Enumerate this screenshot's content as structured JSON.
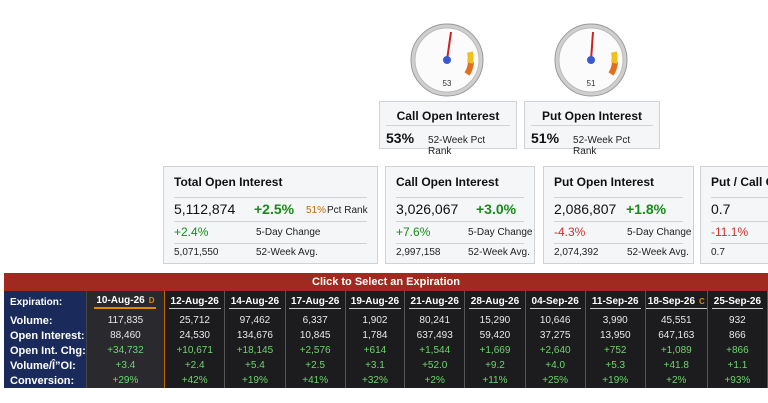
{
  "gauges": [
    {
      "id": "call",
      "value": "53",
      "level": 0.53,
      "title": "Call Open Interest",
      "pct": "53%",
      "label": "52-Week Pct Rank"
    },
    {
      "id": "put",
      "value": "51",
      "level": 0.51,
      "title": "Put Open Interest",
      "pct": "51%",
      "label": "52-Week Pct Rank"
    }
  ],
  "colors": {
    "accent_red": "#a02a20",
    "row_label_bg": "#1a2a5a",
    "positive": "#1a8a1a",
    "negative": "#d03030",
    "badge": "#e08a00"
  },
  "total": {
    "title": "Total Open Interest",
    "value": "5,112,874",
    "change": "+2.5%",
    "rank_pct": "51%",
    "rank_label": "Pct Rank",
    "five_day": "+2.4%",
    "five_day_label": "5-Day Change",
    "avg": "5,071,550",
    "avg_label": "52-Week Avg."
  },
  "call": {
    "title": "Call Open Interest",
    "value": "3,026,067",
    "change": "+3.0%",
    "five_day": "+7.6%",
    "five_day_label": "5-Day Change",
    "avg": "2,997,158",
    "avg_label": "52-Week Avg."
  },
  "put": {
    "title": "Put Open Interest",
    "value": "2,086,807",
    "change": "+1.8%",
    "five_day": "-4.3%",
    "five_day_label": "5-Day Change",
    "avg": "2,074,392",
    "avg_label": "52-Week Avg."
  },
  "ratio": {
    "title": "Put / Call O",
    "value": "0.7",
    "change": "-",
    "five_day": "-11.1%",
    "five_day_label": "5",
    "avg": "0.7",
    "avg_label": "5"
  },
  "expirations": {
    "header": "Click to Select an Expiration",
    "row_labels": [
      "Expiration:",
      "Volume:",
      "Open Interest:",
      "Open Int. Chg:",
      "Volume/Î”OI:",
      "Conversion:"
    ],
    "columns": [
      {
        "date": "10-Aug-26",
        "badge": "D",
        "volume": "117,835",
        "oi": "88,460",
        "oi_chg": "+34,732",
        "vol_oi": "+3.4",
        "conv": "+29%"
      },
      {
        "date": "12-Aug-26",
        "badge": "",
        "volume": "25,712",
        "oi": "24,530",
        "oi_chg": "+10,671",
        "vol_oi": "+2.4",
        "conv": "+42%"
      },
      {
        "date": "14-Aug-26",
        "badge": "",
        "volume": "97,462",
        "oi": "134,676",
        "oi_chg": "+18,145",
        "vol_oi": "+5.4",
        "conv": "+19%"
      },
      {
        "date": "17-Aug-26",
        "badge": "",
        "volume": "6,337",
        "oi": "10,845",
        "oi_chg": "+2,576",
        "vol_oi": "+2.5",
        "conv": "+41%"
      },
      {
        "date": "19-Aug-26",
        "badge": "",
        "volume": "1,902",
        "oi": "1,784",
        "oi_chg": "+614",
        "vol_oi": "+3.1",
        "conv": "+32%"
      },
      {
        "date": "21-Aug-26",
        "badge": "",
        "volume": "80,241",
        "oi": "637,493",
        "oi_chg": "+1,544",
        "vol_oi": "+52.0",
        "conv": "+2%"
      },
      {
        "date": "28-Aug-26",
        "badge": "",
        "volume": "15,290",
        "oi": "59,420",
        "oi_chg": "+1,669",
        "vol_oi": "+9.2",
        "conv": "+11%"
      },
      {
        "date": "04-Sep-26",
        "badge": "",
        "volume": "10,646",
        "oi": "37,275",
        "oi_chg": "+2,640",
        "vol_oi": "+4.0",
        "conv": "+25%"
      },
      {
        "date": "11-Sep-26",
        "badge": "",
        "volume": "3,990",
        "oi": "13,950",
        "oi_chg": "+752",
        "vol_oi": "+5.3",
        "conv": "+19%"
      },
      {
        "date": "18-Sep-26",
        "badge": "C",
        "volume": "45,551",
        "oi": "647,163",
        "oi_chg": "+1,089",
        "vol_oi": "+41.8",
        "conv": "+2%"
      },
      {
        "date": "25-Sep-26",
        "badge": "",
        "volume": "932",
        "oi": "866",
        "oi_chg": "+866",
        "vol_oi": "+1.1",
        "conv": "+93%"
      }
    ]
  }
}
